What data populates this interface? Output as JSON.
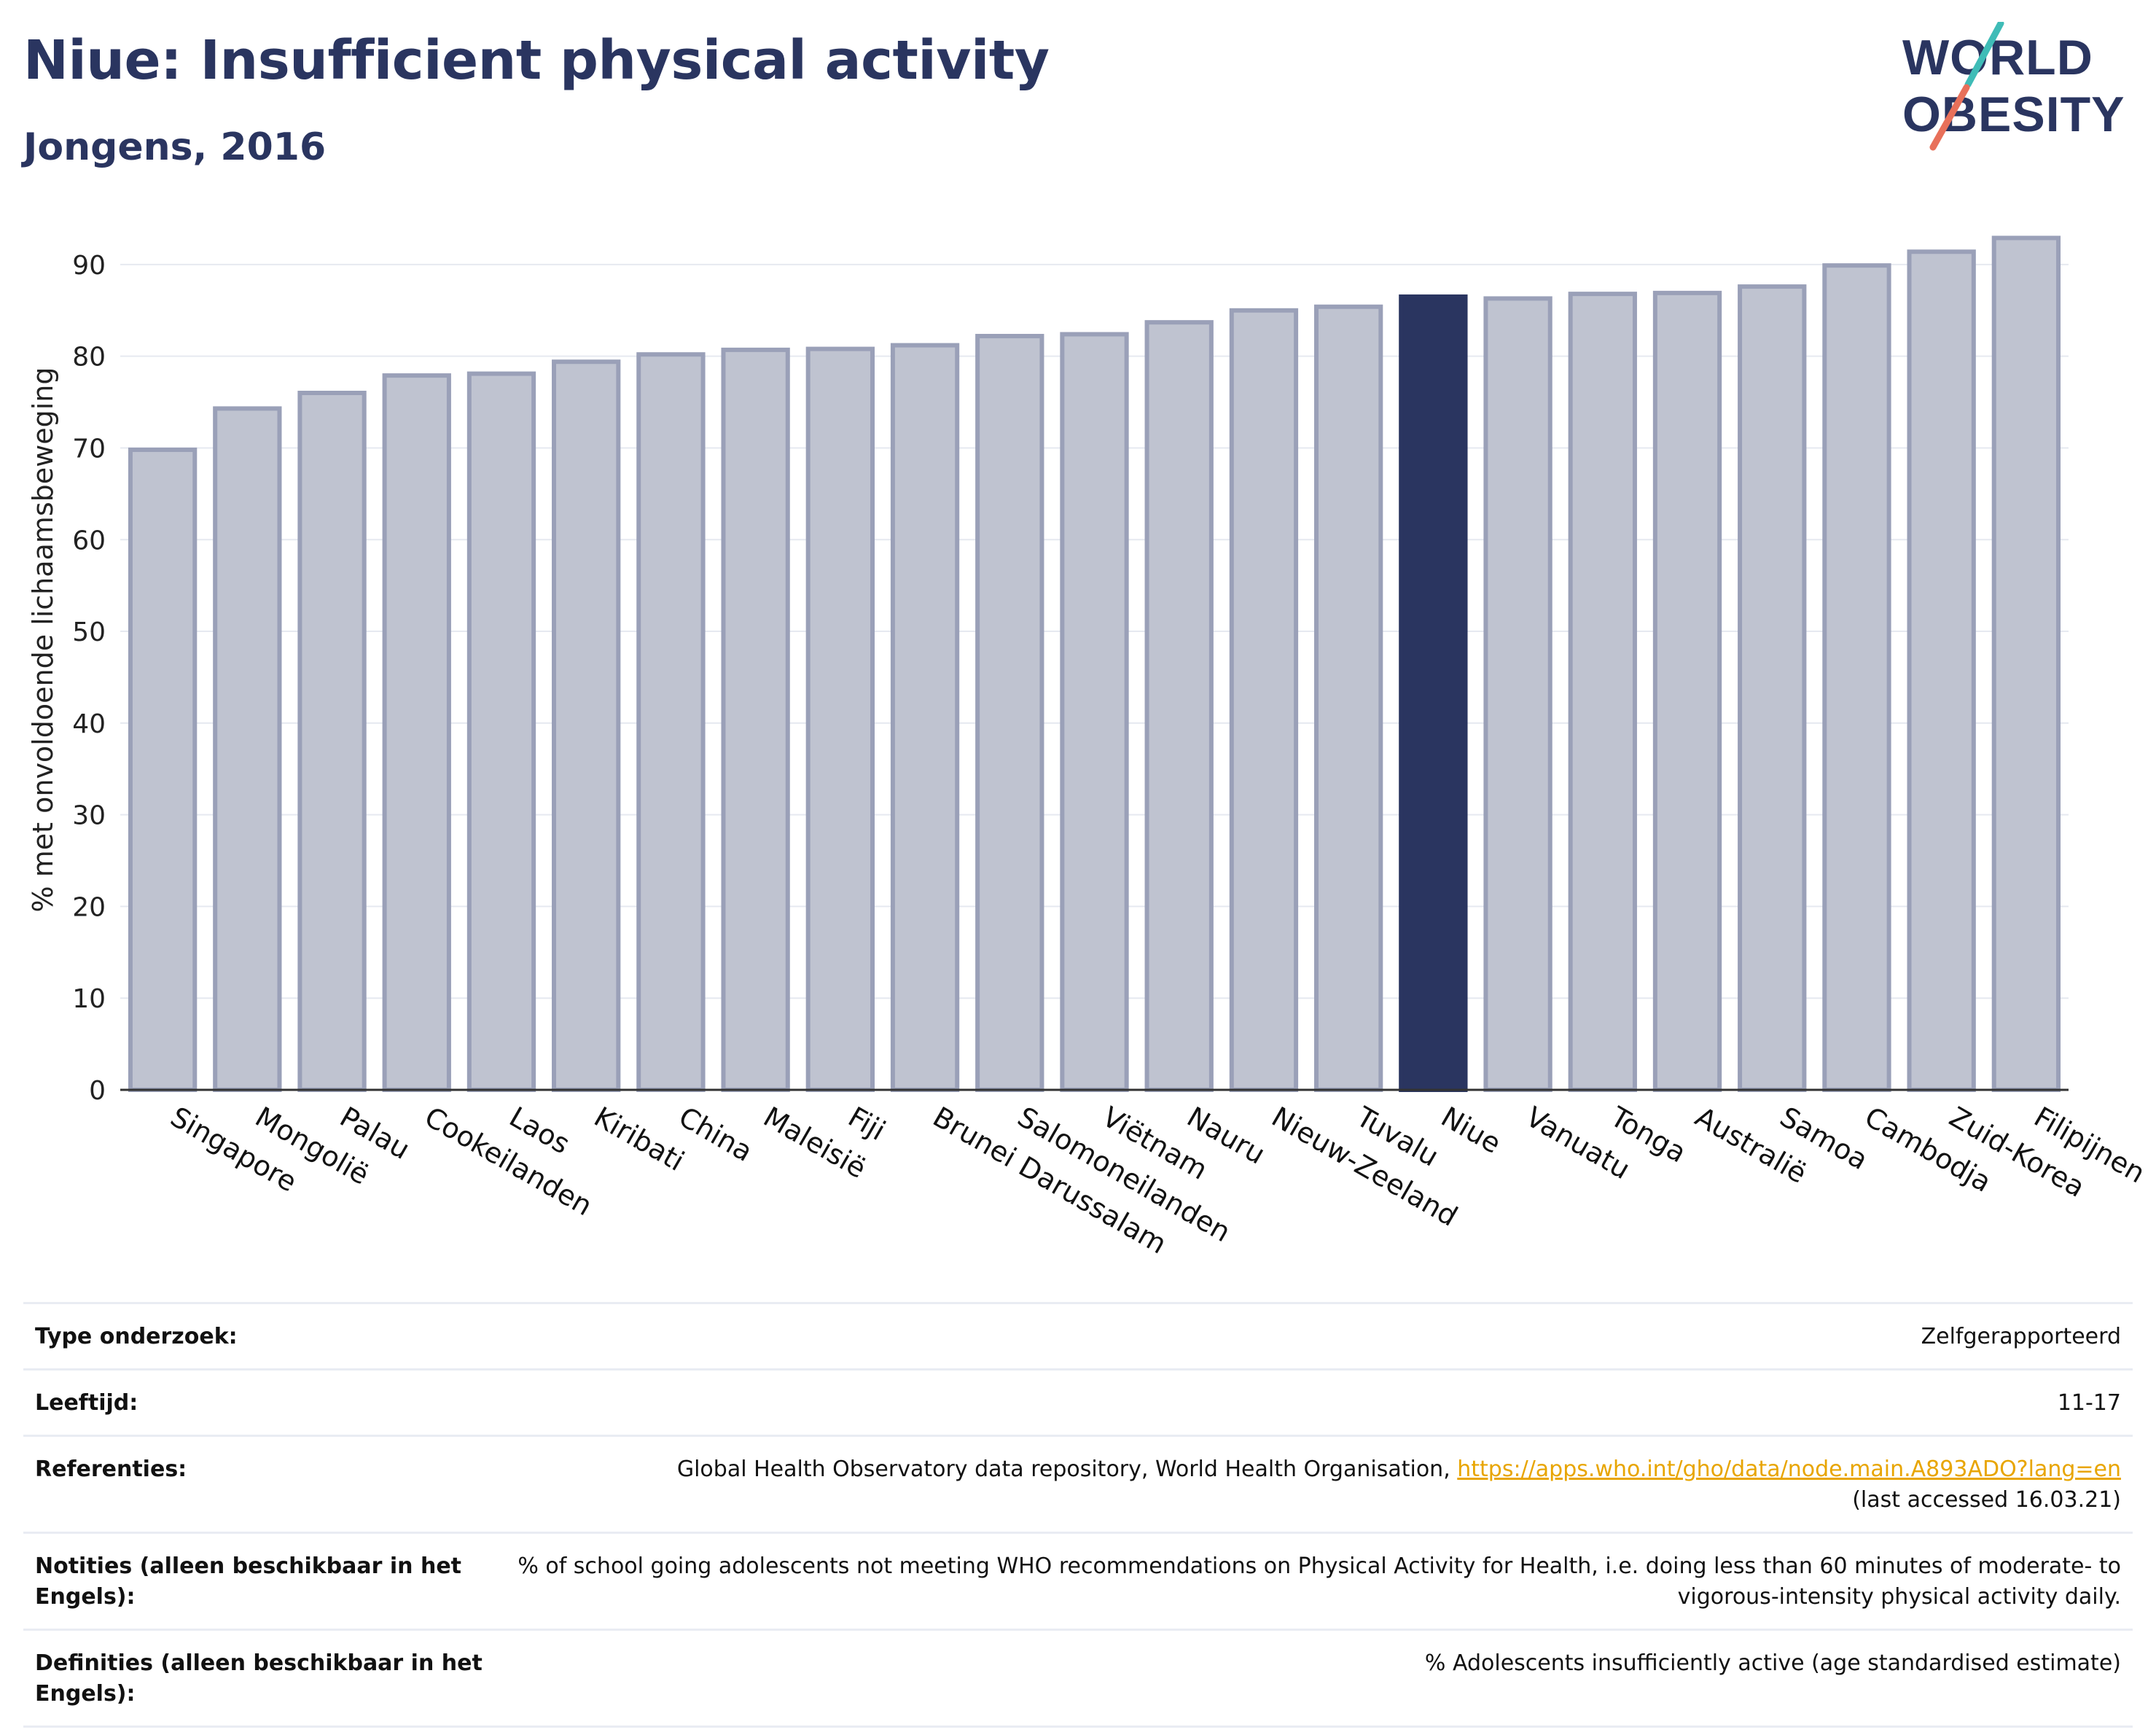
{
  "header": {
    "title": "Niue: Insufficient physical activity",
    "subtitle": "Jongens, 2016"
  },
  "logo": {
    "line1": "WORLD",
    "line2": "OBESITY"
  },
  "colors": {
    "title": "#2a3560",
    "bar": "#bfc3d0",
    "bar_border": "#9aa0b8",
    "highlight": "#2a3560",
    "link": "#e8a500"
  },
  "chart_data": {
    "type": "bar",
    "ylabel": "% met onvoldoende lichaamsbeweging",
    "ylim": [
      0,
      95
    ],
    "yticks": [
      0,
      10,
      20,
      30,
      40,
      50,
      60,
      70,
      80,
      90
    ],
    "grid": true,
    "highlight": "Niue",
    "categories": [
      "Singapore",
      "Mongolië",
      "Palau",
      "Cookeilanden",
      "Laos",
      "Kiribati",
      "China",
      "Maleisië",
      "Fiji",
      "Brunei Darussalam",
      "Salomoneilanden",
      "Viëtnam",
      "Nauru",
      "Nieuw-Zeeland",
      "Tuvalu",
      "Niue",
      "Vanuatu",
      "Tonga",
      "Australië",
      "Samoa",
      "Cambodja",
      "Zuid-Korea",
      "Filipijnen"
    ],
    "values": [
      69.8,
      74.3,
      76.0,
      77.9,
      78.1,
      79.4,
      80.2,
      80.7,
      80.8,
      81.2,
      82.2,
      82.4,
      83.7,
      85.0,
      85.4,
      86.5,
      86.3,
      86.8,
      86.9,
      87.6,
      89.9,
      91.4,
      92.9
    ]
  },
  "info": [
    {
      "key": "Type onderzoek:",
      "value": "Zelfgerapporteerd"
    },
    {
      "key": "Leeftijd:",
      "value": "11-17"
    },
    {
      "key": "Referenties:",
      "value": "Global Health Observatory data repository, World Health Organisation, ",
      "link": "https://apps.who.int/gho/data/node.main.A893ADO?lang=en",
      "suffix": "(last accessed 16.03.21)"
    },
    {
      "key": "Notities (alleen beschikbaar in het Engels):",
      "value": "% of school going adolescents not meeting WHO recommendations on Physical Activity for Health, i.e. doing less than 60 minutes of moderate- to vigorous-intensity physical activity daily."
    },
    {
      "key": "Definities (alleen beschikbaar in het Engels):",
      "value": "% Adolescents insufficiently active (age standardised estimate)"
    }
  ]
}
